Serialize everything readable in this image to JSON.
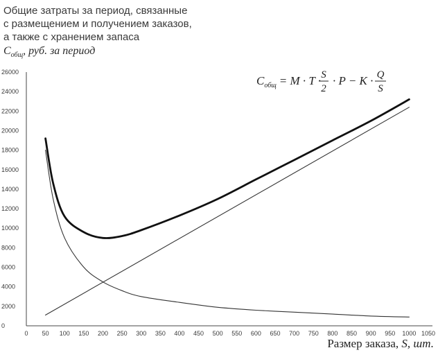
{
  "chart_data": {
    "type": "line",
    "title_lines": [
      "Общие затраты за период, связанные",
      "с размещением и получением заказов,",
      "а также с хранением запаса"
    ],
    "ylabel_symbol": "C",
    "ylabel_subscript": "общ",
    "ylabel_rest": ", руб. за период",
    "xlabel_prefix": "Размер заказа, ",
    "xlabel_symbol": "S",
    "xlabel_suffix": ", шт.",
    "formula": {
      "lhs_symbol": "C",
      "lhs_subscript": "общ",
      "middle": "= M · T ·",
      "frac1_num": "S",
      "frac1_den": "2",
      "tail": "· P − K ·",
      "frac2_num": "Q",
      "frac2_den": "S"
    },
    "x_ticks": [
      "0",
      "50",
      "100",
      "150",
      "200",
      "250",
      "300",
      "350",
      "400",
      "450",
      "500",
      "550",
      "600",
      "650",
      "700",
      "750",
      "800",
      "850",
      "900",
      "950",
      "1000",
      "1050"
    ],
    "y_ticks": [
      "0",
      "2000",
      "4000",
      "6000",
      "8000",
      "10000",
      "12000",
      "14000",
      "16000",
      "18000",
      "20000",
      "22000",
      "24000",
      "26000"
    ],
    "xlim": [
      0,
      1050
    ],
    "ylim": [
      0,
      26000
    ],
    "grid": false,
    "series": [
      {
        "role": "total",
        "x": [
          50,
          70,
          100,
          150,
          200,
          250,
          300,
          400,
          500,
          600,
          700,
          800,
          900,
          1000
        ],
        "y": [
          19200,
          14600,
          11200,
          9600,
          9000,
          9200,
          9800,
          11300,
          13000,
          15000,
          17000,
          19000,
          21000,
          23200
        ]
      },
      {
        "role": "linear",
        "x": [
          50,
          1000
        ],
        "y": [
          1100,
          22400
        ]
      },
      {
        "role": "hyperbolic",
        "x": [
          50,
          70,
          100,
          150,
          200,
          250,
          300,
          400,
          500,
          600,
          700,
          800,
          900,
          1000
        ],
        "y": [
          18000,
          13000,
          9000,
          6000,
          4500,
          3600,
          3000,
          2400,
          1900,
          1600,
          1400,
          1200,
          1000,
          900
        ]
      }
    ],
    "colors": {
      "total": "#111111",
      "linear": "#333333",
      "hyperbolic": "#333333",
      "axis": "#444444"
    }
  }
}
